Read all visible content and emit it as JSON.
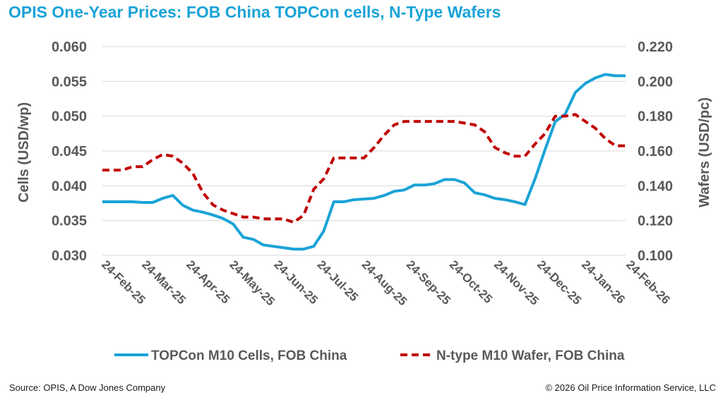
{
  "title": "OPIS One-Year Prices: FOB China TOPCon cells, N-Type Wafers",
  "footer": {
    "source": "Source: OPIS, A Dow Jones Company",
    "copyright": "© 2026 Oil Price Information Service, LLC"
  },
  "colors": {
    "title": "#1aa3d7",
    "cells": "#1aa3d7",
    "wafers": "#c00000",
    "grid": "#d9d9d9",
    "text": "#595959"
  },
  "chart_data": {
    "type": "line",
    "title": "OPIS One-Year Prices: FOB China TOPCon cells, N-Type Wafers",
    "xlabel": "",
    "ylabel": "Cells (USD/wp)",
    "y2label": "Wafers (USD/pc)",
    "ylim": [
      0.03,
      0.06
    ],
    "y2lim": [
      0.1,
      0.22
    ],
    "yticks": [
      "0.060",
      "0.055",
      "0.050",
      "0.045",
      "0.040",
      "0.035",
      "0.030"
    ],
    "y2ticks": [
      "0.220",
      "0.200",
      "0.180",
      "0.160",
      "0.140",
      "0.120",
      "0.100"
    ],
    "xticks": [
      "24-Feb-25",
      "24-Mar-25",
      "24-Apr-25",
      "24-May-25",
      "24-Jun-25",
      "24-Jul-25",
      "24-Aug-25",
      "24-Sep-25",
      "24-Oct-25",
      "24-Nov-25",
      "24-Dec-25",
      "24-Jan-26",
      "24-Feb-26"
    ],
    "grid": true,
    "legend_position": "bottom",
    "series": [
      {
        "name": "TOPCon M10 Cells, FOB China",
        "axis": "left",
        "style": "solid",
        "x": [
          "2025-02-24",
          "2025-03-03",
          "2025-03-10",
          "2025-03-17",
          "2025-03-24",
          "2025-03-31",
          "2025-04-07",
          "2025-04-14",
          "2025-04-21",
          "2025-04-28",
          "2025-05-05",
          "2025-05-12",
          "2025-05-19",
          "2025-05-26",
          "2025-06-02",
          "2025-06-09",
          "2025-06-16",
          "2025-06-23",
          "2025-06-30",
          "2025-07-07",
          "2025-07-14",
          "2025-07-21",
          "2025-07-28",
          "2025-08-04",
          "2025-08-11",
          "2025-08-18",
          "2025-08-25",
          "2025-09-01",
          "2025-09-08",
          "2025-09-15",
          "2025-09-22",
          "2025-09-29",
          "2025-10-06",
          "2025-10-13",
          "2025-10-20",
          "2025-10-27",
          "2025-11-03",
          "2025-11-10",
          "2025-11-17",
          "2025-11-24",
          "2025-12-01",
          "2025-12-08",
          "2025-12-15",
          "2025-12-22",
          "2025-12-29",
          "2026-01-05",
          "2026-01-12",
          "2026-01-19",
          "2026-01-26",
          "2026-02-02",
          "2026-02-09",
          "2026-02-16",
          "2026-02-23"
        ],
        "values": [
          0.0377,
          0.0377,
          0.0377,
          0.0377,
          0.0376,
          0.0376,
          0.0382,
          0.0386,
          0.0372,
          0.0365,
          0.0362,
          0.0358,
          0.0353,
          0.0345,
          0.0326,
          0.0323,
          0.0315,
          0.0313,
          0.0311,
          0.0309,
          0.0309,
          0.0313,
          0.0335,
          0.0377,
          0.0377,
          0.038,
          0.0381,
          0.0382,
          0.0386,
          0.0392,
          0.0394,
          0.0401,
          0.0401,
          0.0403,
          0.0409,
          0.0409,
          0.0404,
          0.039,
          0.0387,
          0.0382,
          0.038,
          0.0377,
          0.0373,
          0.041,
          0.0452,
          0.0492,
          0.0503,
          0.0534,
          0.0547,
          0.0555,
          0.056,
          0.0558,
          0.0558
        ]
      },
      {
        "name": "N-type M10 Wafer, FOB China",
        "axis": "right",
        "style": "dashed",
        "x": [
          "2025-02-24",
          "2025-03-03",
          "2025-03-10",
          "2025-03-17",
          "2025-03-24",
          "2025-03-31",
          "2025-04-07",
          "2025-04-14",
          "2025-04-21",
          "2025-04-28",
          "2025-05-05",
          "2025-05-12",
          "2025-05-19",
          "2025-05-26",
          "2025-06-02",
          "2025-06-09",
          "2025-06-16",
          "2025-06-23",
          "2025-06-30",
          "2025-07-07",
          "2025-07-14",
          "2025-07-21",
          "2025-07-28",
          "2025-08-04",
          "2025-08-11",
          "2025-08-18",
          "2025-08-25",
          "2025-09-01",
          "2025-09-08",
          "2025-09-15",
          "2025-09-22",
          "2025-09-29",
          "2025-10-06",
          "2025-10-13",
          "2025-10-20",
          "2025-10-27",
          "2025-11-03",
          "2025-11-10",
          "2025-11-17",
          "2025-11-24",
          "2025-12-01",
          "2025-12-08",
          "2025-12-15",
          "2025-12-22",
          "2025-12-29",
          "2026-01-05",
          "2026-01-12",
          "2026-01-19",
          "2026-01-26",
          "2026-02-02",
          "2026-02-09",
          "2026-02-16",
          "2026-02-23"
        ],
        "values": [
          0.149,
          0.149,
          0.149,
          0.151,
          0.151,
          0.155,
          0.158,
          0.157,
          0.153,
          0.147,
          0.136,
          0.129,
          0.126,
          0.124,
          0.122,
          0.122,
          0.121,
          0.121,
          0.121,
          0.119,
          0.123,
          0.138,
          0.144,
          0.156,
          0.156,
          0.156,
          0.156,
          0.162,
          0.169,
          0.175,
          0.177,
          0.177,
          0.177,
          0.177,
          0.177,
          0.177,
          0.176,
          0.175,
          0.171,
          0.162,
          0.159,
          0.157,
          0.157,
          0.164,
          0.17,
          0.18,
          0.18,
          0.181,
          0.177,
          0.173,
          0.167,
          0.163,
          0.163
        ]
      }
    ]
  }
}
